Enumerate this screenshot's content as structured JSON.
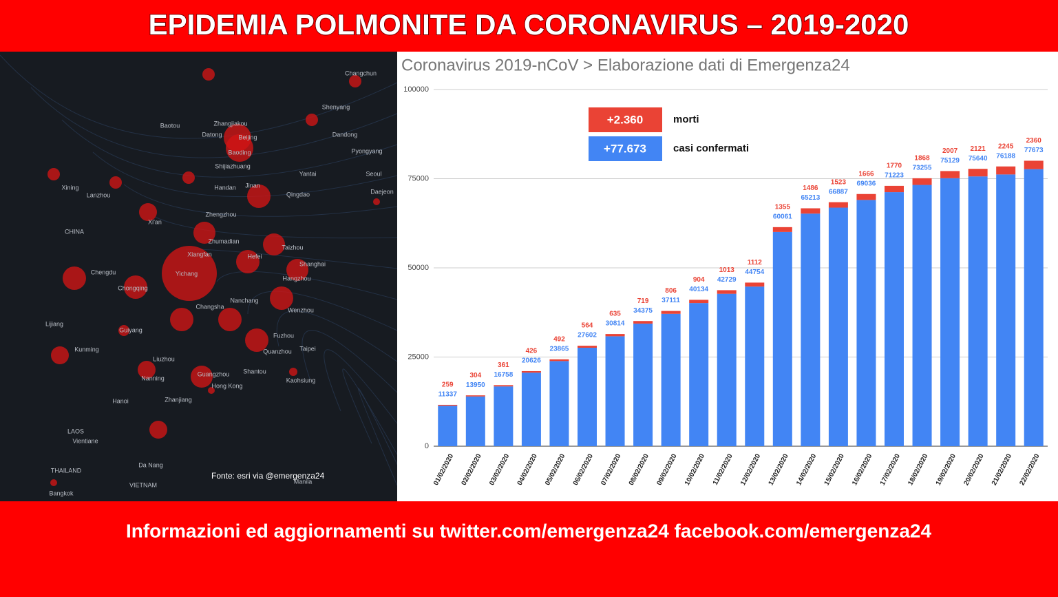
{
  "header": {
    "title": "EPIDEMIA POLMONITE DA CORONAVIRUS – 2019-2020"
  },
  "footer": {
    "text": "Informazioni ed aggiornamenti su twitter.com/emergenza24  facebook.com/emergenza24"
  },
  "map": {
    "source": "Fonte: esri via @emergenza24",
    "labels": [
      "Baotou",
      "Datong",
      "Zhangjiakou",
      "Beijing",
      "Baoding",
      "Shijiazhuang",
      "Changchun",
      "Shenyang",
      "Dandong",
      "Pyongyang",
      "Seoul",
      "Yantai",
      "Daejeon",
      "Qingdao",
      "Jinan",
      "Handan",
      "Lanzhou",
      "Xining",
      "CHINA",
      "Zhengzhou",
      "Xi'an",
      "Zhumadian",
      "Taizhou",
      "Xiangfan",
      "Hefei",
      "Shanghai",
      "Chengdu",
      "Yichang",
      "Hangzhou",
      "Chongqing",
      "Nanchang",
      "Changsha",
      "Wenzhou",
      "Guiyang",
      "Fuzhou",
      "Lijiang",
      "Kunming",
      "Taipei",
      "Quanzhou",
      "Liuzhou",
      "Shantou",
      "Nanning",
      "Guangzhou",
      "Kaohsiung",
      "Hong Kong",
      "Hanoi",
      "Zhanjiang",
      "LAOS",
      "Vientiane",
      "Da Nang",
      "THAILAND",
      "Bangkok",
      "VIETNAM",
      "Manila"
    ]
  },
  "chart_data": {
    "type": "stacked_bar",
    "title": "Coronavirus 2019-nCoV > Elaborazione dati di Emergenza24",
    "categories": [
      "01/02/2020",
      "02/02/2020",
      "03/02/2020",
      "04/02/2020",
      "05/02/2020",
      "06/02/2020",
      "07/02/2020",
      "08/02/2020",
      "09/02/2020",
      "10/02/2020",
      "11/02/2020",
      "12/02/2020",
      "13/02/2020",
      "14/02/2020",
      "15/02/2020",
      "16/02/2020",
      "17/02/2020",
      "18/02/2020",
      "19/02/2020",
      "20/02/2020",
      "21/02/2020",
      "22/02/2020"
    ],
    "series": [
      {
        "name": "casi confermati",
        "color": "#4285f4",
        "total_label": "+77.673",
        "values": [
          11337,
          13950,
          16758,
          20626,
          23865,
          27602,
          30814,
          34375,
          37111,
          40134,
          42729,
          44754,
          60061,
          65213,
          66887,
          69036,
          71223,
          73255,
          75129,
          75640,
          76188,
          77673
        ]
      },
      {
        "name": "morti",
        "color": "#ea4335",
        "total_label": "+2.360",
        "values": [
          259,
          304,
          361,
          426,
          492,
          564,
          635,
          719,
          806,
          904,
          1013,
          1112,
          1355,
          1486,
          1523,
          1666,
          1770,
          1868,
          2007,
          2121,
          2245,
          2360
        ]
      }
    ],
    "ylim": [
      0,
      100000
    ],
    "yticks": [
      0,
      25000,
      50000,
      75000,
      100000
    ],
    "grid": true
  }
}
